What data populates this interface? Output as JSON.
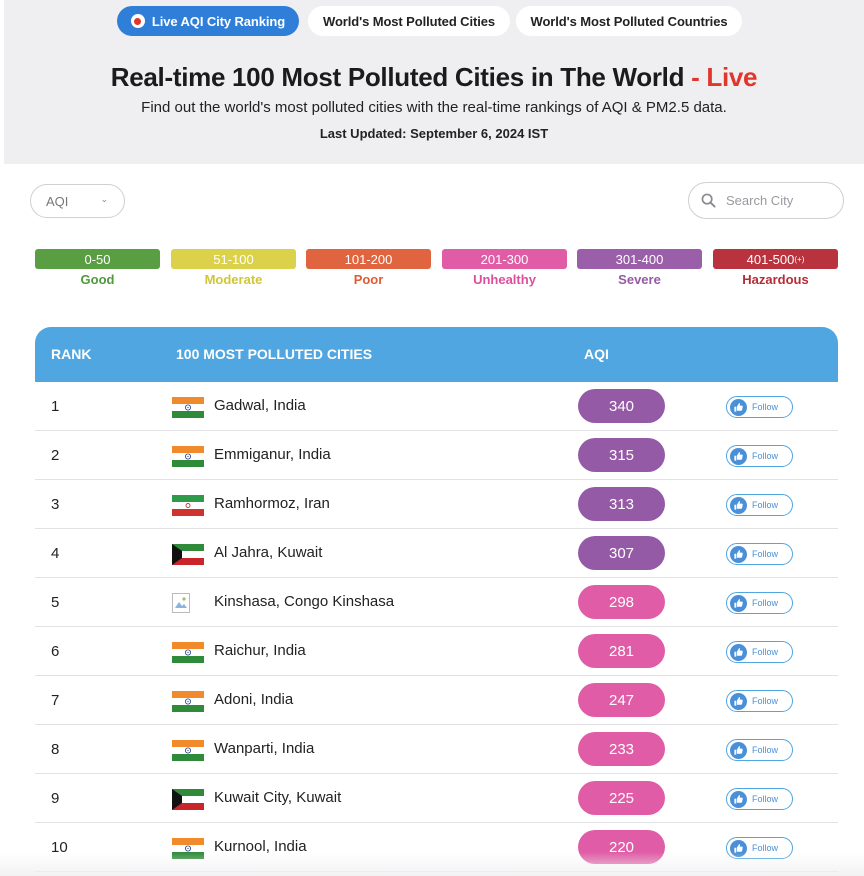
{
  "tabs": [
    {
      "label": "Live AQI City Ranking",
      "active": true
    },
    {
      "label": "World's Most Polluted Cities",
      "active": false
    },
    {
      "label": "World's Most Polluted Countries",
      "active": false
    }
  ],
  "header": {
    "title": "Real-time 100 Most Polluted Cities in The World",
    "title_live": "- Live",
    "subtitle": "Find out the world's most polluted cities with the real-time rankings of AQI & PM2.5 data.",
    "updated": "Last Updated: September 6, 2024 IST"
  },
  "filter": {
    "selected": "AQI"
  },
  "search": {
    "placeholder": "Search City"
  },
  "scale": [
    {
      "range": "0-50",
      "label": "Good",
      "color": "#5a9e43",
      "text_color": "#4f9a3a"
    },
    {
      "range": "51-100",
      "label": "Moderate",
      "color": "#dcd14b",
      "text_color": "#d0c637"
    },
    {
      "range": "101-200",
      "label": "Poor",
      "color": "#e0643f",
      "text_color": "#df5c33"
    },
    {
      "range": "201-300",
      "label": "Unhealthy",
      "color": "#e05ca6",
      "text_color": "#dd4f9c"
    },
    {
      "range": "301-400",
      "label": "Severe",
      "color": "#9b5ea8",
      "text_color": "#955aa5"
    },
    {
      "range": "401-500",
      "sup": "(+)",
      "label": "Hazardous",
      "color": "#b8333d",
      "text_color": "#b72b36"
    }
  ],
  "table": {
    "headers": {
      "rank": "RANK",
      "cities": "100 MOST POLLUTED CITIES",
      "aqi": "AQI"
    },
    "follow_label": "Follow",
    "rows": [
      {
        "rank": "1",
        "city": "Gadwal, India",
        "flag": "india",
        "aqi": "340",
        "color": "#955aa5"
      },
      {
        "rank": "2",
        "city": "Emmiganur, India",
        "flag": "india",
        "aqi": "315",
        "color": "#955aa5"
      },
      {
        "rank": "3",
        "city": "Ramhormoz, Iran",
        "flag": "iran",
        "aqi": "313",
        "color": "#955aa5"
      },
      {
        "rank": "4",
        "city": "Al Jahra, Kuwait",
        "flag": "kuwait",
        "aqi": "307",
        "color": "#955aa5"
      },
      {
        "rank": "5",
        "city": "Kinshasa, Congo Kinshasa",
        "flag": "broken",
        "aqi": "298",
        "color": "#e05ca6"
      },
      {
        "rank": "6",
        "city": "Raichur, India",
        "flag": "india",
        "aqi": "281",
        "color": "#e05ca6"
      },
      {
        "rank": "7",
        "city": "Adoni, India",
        "flag": "india",
        "aqi": "247",
        "color": "#e05ca6"
      },
      {
        "rank": "8",
        "city": "Wanparti, India",
        "flag": "india",
        "aqi": "233",
        "color": "#e05ca6"
      },
      {
        "rank": "9",
        "city": "Kuwait City, Kuwait",
        "flag": "kuwait",
        "aqi": "225",
        "color": "#e05ca6"
      },
      {
        "rank": "10",
        "city": "Kurnool, India",
        "flag": "india",
        "aqi": "220",
        "color": "#e05ca6"
      }
    ]
  }
}
